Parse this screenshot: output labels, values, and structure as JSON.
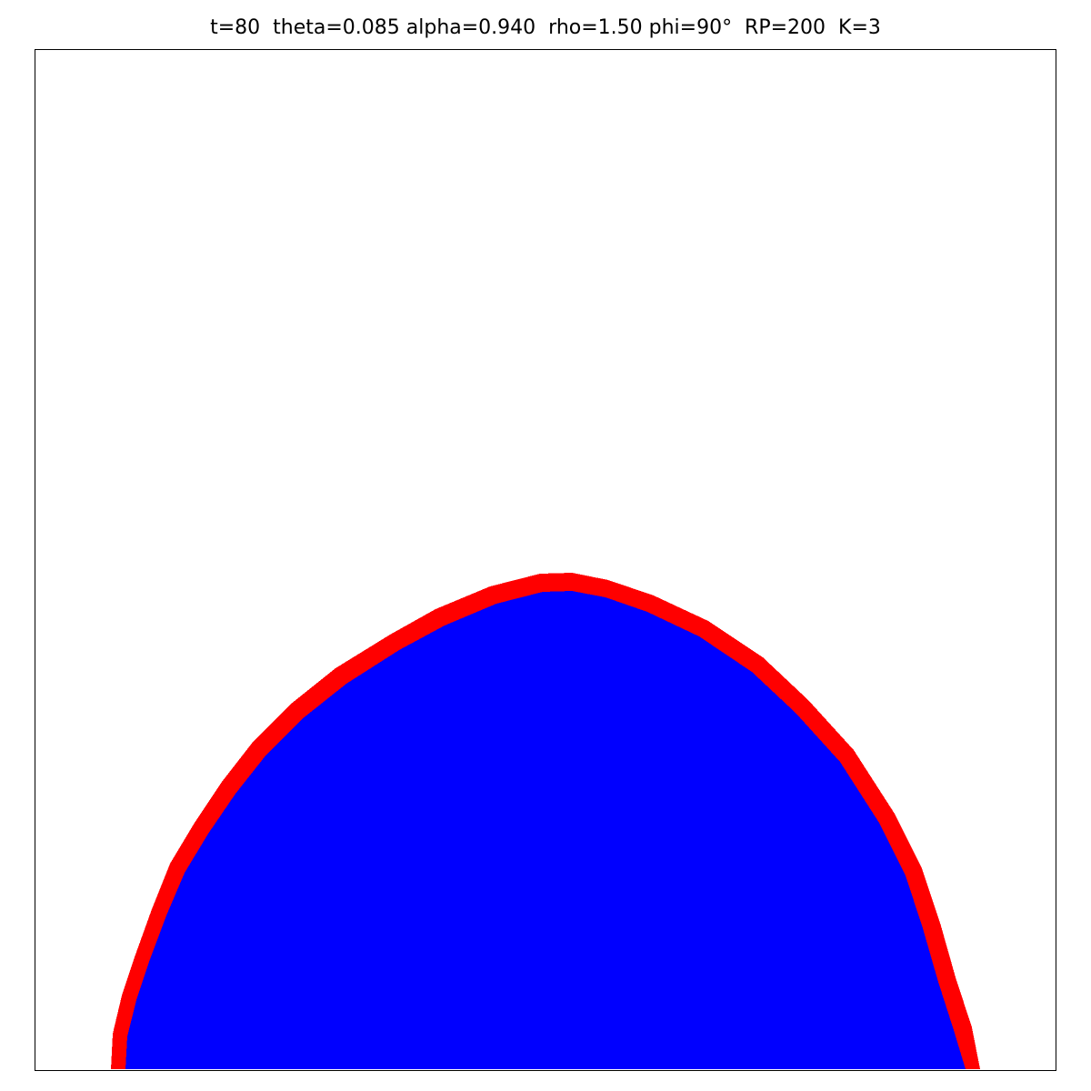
{
  "title": "t=80  theta=0.085 alpha=0.940  rho=1.50 phi=90°  RP=200  K=3",
  "colors": {
    "background": "#ffffff",
    "interior": "#0000ff",
    "boundary": "#ff0000",
    "frame": "#000000"
  }
}
